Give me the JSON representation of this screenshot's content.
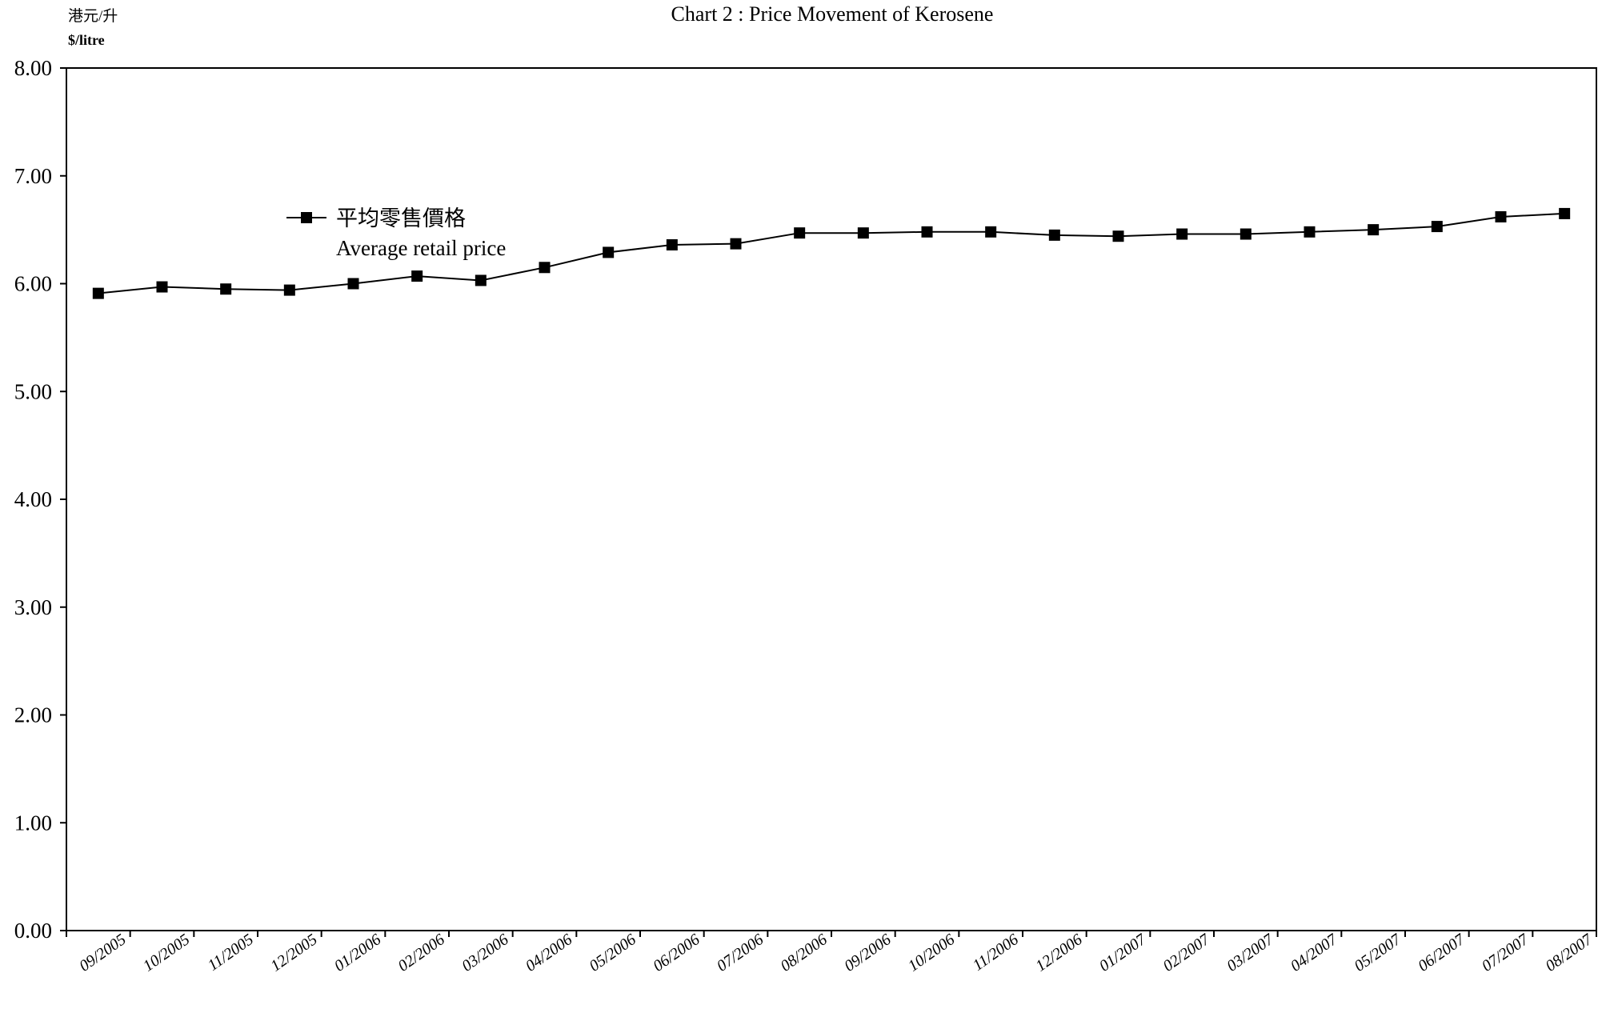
{
  "chart_data": {
    "type": "line",
    "title": "Chart 2 : Price Movement of Kerosene",
    "ylabel_zh": "港元/升",
    "ylabel": "$/litre",
    "xlabel": "",
    "ylim": [
      0,
      8
    ],
    "y_ticks": [
      "0.00",
      "1.00",
      "2.00",
      "3.00",
      "4.00",
      "5.00",
      "6.00",
      "7.00",
      "8.00"
    ],
    "grid": false,
    "legend_position": "upper-left",
    "categories": [
      "09/2005",
      "10/2005",
      "11/2005",
      "12/2005",
      "01/2006",
      "02/2006",
      "03/2006",
      "04/2006",
      "05/2006",
      "06/2006",
      "07/2006",
      "08/2006",
      "09/2006",
      "10/2006",
      "11/2006",
      "12/2006",
      "01/2007",
      "02/2007",
      "03/2007",
      "04/2007",
      "05/2007",
      "06/2007",
      "07/2007",
      "08/2007"
    ],
    "series": [
      {
        "name_zh": "平均零售價格",
        "name": "Average retail price",
        "color": "#000000",
        "marker": "square",
        "values": [
          5.91,
          5.97,
          5.95,
          5.94,
          6.0,
          6.07,
          6.03,
          6.15,
          6.29,
          6.36,
          6.37,
          6.47,
          6.47,
          6.48,
          6.48,
          6.45,
          6.44,
          6.46,
          6.46,
          6.48,
          6.5,
          6.53,
          6.62,
          6.65
        ]
      }
    ]
  }
}
